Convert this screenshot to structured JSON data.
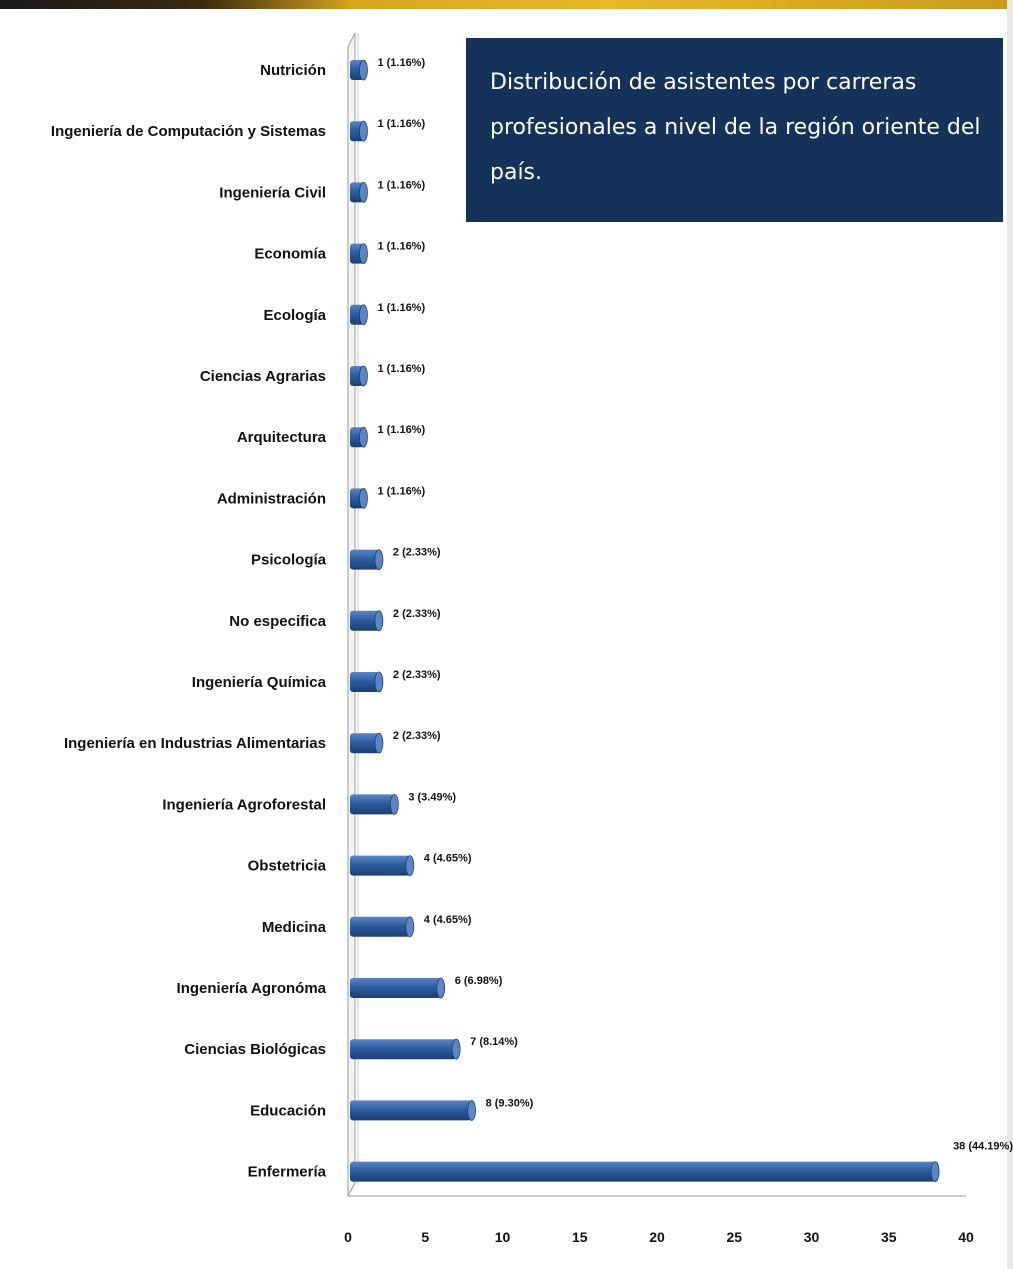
{
  "colors": {
    "bar_main": "#2d5d9f",
    "bar_light": "#5b86c5",
    "bar_dark": "#1c3f72",
    "title_bg": "#14325a",
    "title_text": "#ffffff"
  },
  "chart_data": {
    "type": "bar",
    "orientation": "horizontal",
    "title": "Distribución de asistentes por carreras profesionales a nivel de la región oriente del país.",
    "xlim": [
      0,
      40
    ],
    "xticks": [
      0,
      5,
      10,
      15,
      20,
      25,
      30,
      35,
      40
    ],
    "grid": false,
    "categories": [
      "Nutrición",
      "Ingeniería de Computación y Sistemas",
      "Ingeniería Civil",
      "Economía",
      "Ecología",
      "Ciencias Agrarias",
      "Arquitectura",
      "Administración",
      "Psicología",
      "No especifica",
      "Ingeniería Química",
      "Ingeniería en Industrias Alimentarias",
      "Ingeniería Agroforestal",
      "Obstetricia",
      "Medicina",
      "Ingeniería Agronóma",
      "Ciencias Biológicas",
      "Educación",
      "Enfermería"
    ],
    "values": [
      1,
      1,
      1,
      1,
      1,
      1,
      1,
      1,
      2,
      2,
      2,
      2,
      3,
      4,
      4,
      6,
      7,
      8,
      38
    ],
    "data_labels": [
      "1 (1.16%)",
      "1 (1.16%)",
      "1 (1.16%)",
      "1 (1.16%)",
      "1 (1.16%)",
      "1 (1.16%)",
      "1 (1.16%)",
      "1 (1.16%)",
      "2 (2.33%)",
      "2 (2.33%)",
      "2 (2.33%)",
      "2 (2.33%)",
      "3 (3.49%)",
      "4 (4.65%)",
      "4 (4.65%)",
      "6 (6.98%)",
      "7 (8.14%)",
      "8 (9.30%)",
      "38 (44.19%)"
    ]
  }
}
